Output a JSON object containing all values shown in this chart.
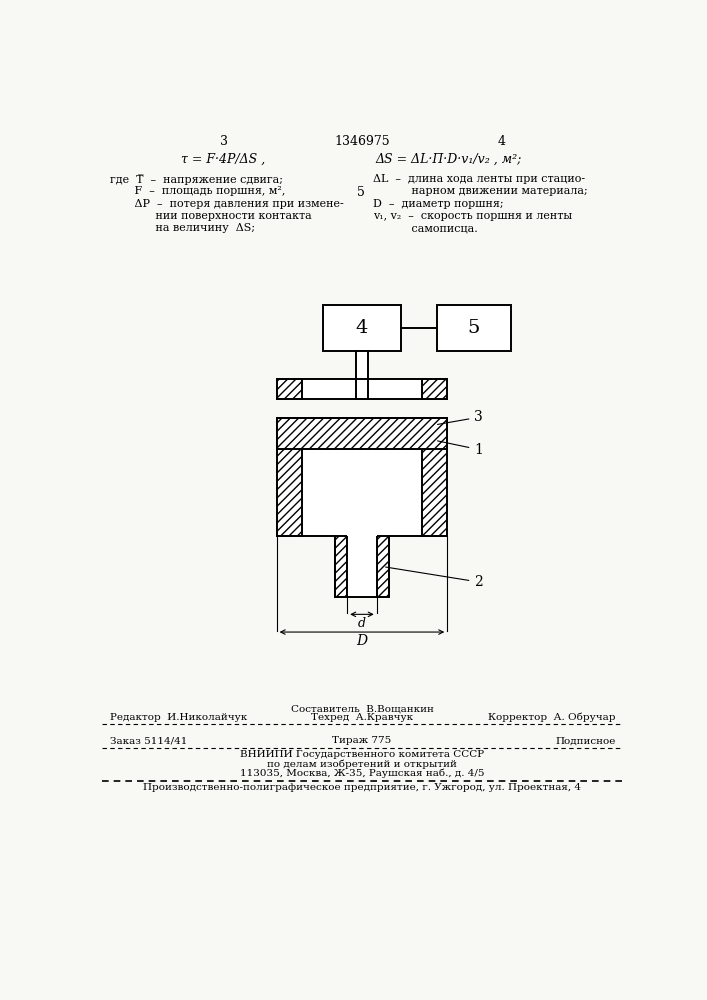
{
  "page_number_left": "3",
  "page_number_center": "1346975",
  "page_number_right": "4",
  "formula_left": "τ = F·4P/ΔS ,",
  "formula_right": "ΔS = ΔL·Π·D·v₁/v₂ , м²;",
  "legend_left_1": "где  Т̅  –  напряжение сдвига;",
  "legend_left_2": "       F  –  площадь поршня, м²,",
  "legend_left_3": "       ΔP  –  потеря давления при измене-",
  "legend_left_4": "             нии поверхности контакта",
  "legend_left_5": "             на величину  ΔS;",
  "legend_right_num": "5",
  "legend_right_1": "ΔL  –  длина хода ленты при стацио-",
  "legend_right_2": "           нарном движении материала;",
  "legend_right_3": "D  –  диаметр поршня;",
  "legend_right_4": "v₁, v₂  –  скорость поршня и ленты",
  "legend_right_5": "           самописца.",
  "footer_editor": "Редактор  И.Николайчук",
  "footer_composer": "Составитель  В.Вощанкин",
  "footer_techred": "Техред  А.Кравчук",
  "footer_corrector": "Корректор  А. Обручар",
  "footer_order": "Заказ 5114/41",
  "footer_tirazh": "Тираж 775",
  "footer_podpisnoe": "Подписное",
  "footer_vniipи": "ВНИИПИ Государственного комитета СССР",
  "footer_po_delam": "по делам изобретений и открытий",
  "footer_address": "113035, Москва, Ж-35, Раушская наб., д. 4/5",
  "footer_polygraph": "Производственно-полиграфическое предприятие, г. Ужгород, ул. Проектная, 4",
  "bg_color": "#f8f8f4"
}
